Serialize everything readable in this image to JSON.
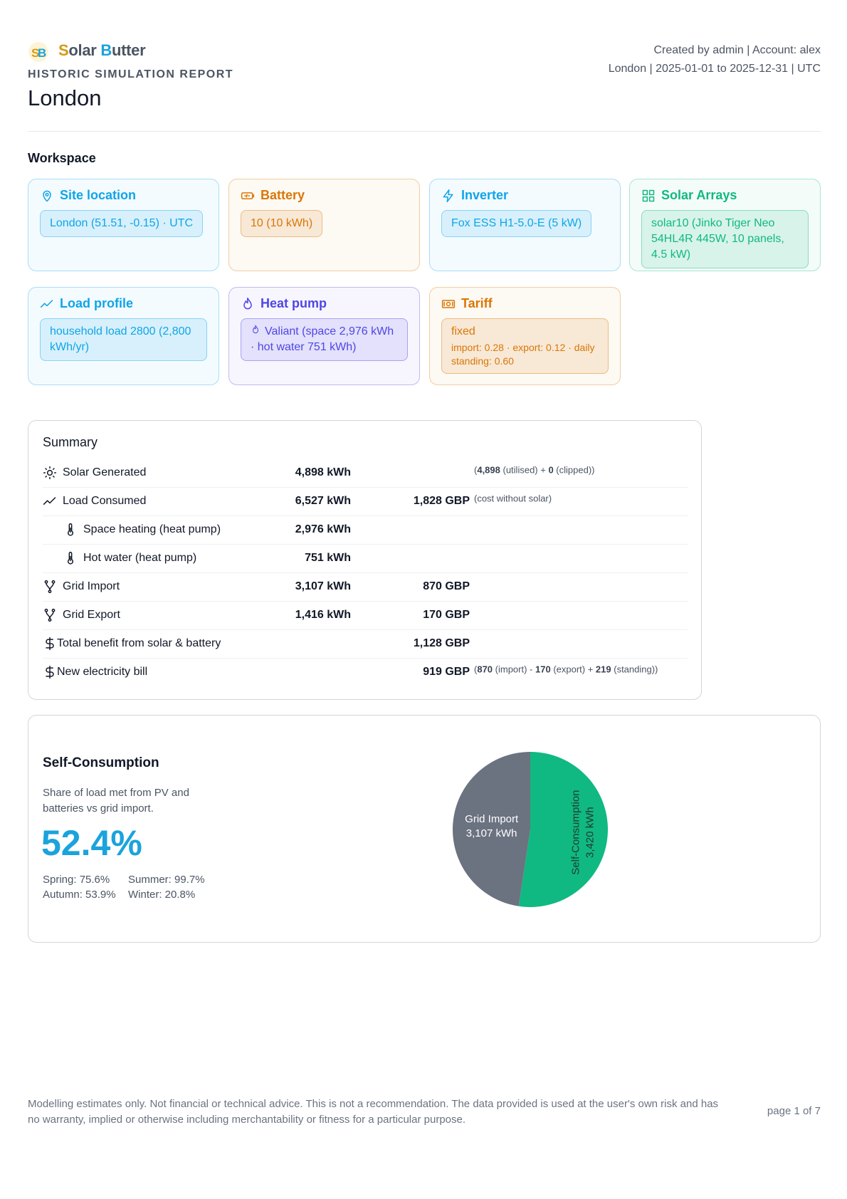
{
  "header": {
    "brand": {
      "first": [
        "S",
        "olar"
      ],
      "second": [
        "B",
        "utter"
      ]
    },
    "subtitle": "HISTORIC SIMULATION REPORT",
    "title": "London",
    "meta": [
      "Created by admin | Account: alex",
      "London | 2025-01-01 to 2025-12-31 | UTC"
    ]
  },
  "workspace": {
    "heading": "Workspace",
    "cards": [
      {
        "title": "Site location",
        "color": "#0ea5e9",
        "items": [
          {
            "text": "London (51.51, -0.15) · UTC"
          }
        ]
      },
      {
        "title": "Battery",
        "color": "#d97706",
        "items": [
          {
            "text": "10 (10 kWh)"
          }
        ]
      },
      {
        "title": "Inverter",
        "color": "#0ea5e9",
        "items": [
          {
            "text": "Fox ESS H1-5.0-E (5 kW)"
          }
        ]
      },
      {
        "title": "Solar Arrays",
        "color": "#10b981",
        "items": [
          {
            "text": "solar10 (Jinko Tiger Neo 54HL4R 445W, 10 panels, 4.5 kW)"
          }
        ]
      },
      {
        "title": "Load profile",
        "color": "#0ea5e9",
        "items": [
          {
            "text": "household load 2800 (2,800 kWh/yr)"
          }
        ]
      },
      {
        "title": "Heat pump",
        "color": "#4f46e5",
        "items": [
          {
            "text": "Valiant (space 2,976 kWh · hot water 751 kWh)"
          }
        ]
      },
      {
        "title": "Tariff",
        "color": "#d97706",
        "items": [
          {
            "text": "fixed",
            "detail": "import: 0.28 · export: 0.12 · daily standing: 0.60"
          }
        ]
      }
    ]
  },
  "summary": {
    "title": "Summary",
    "rows": [
      {
        "label": "Solar Generated",
        "kwh": "4,898 kWh",
        "note": [
          "(",
          "4,898",
          " (utilised) + ",
          "0",
          " (clipped))"
        ]
      },
      {
        "label": "Load Consumed",
        "kwh": "6,527 kWh",
        "gbp": "1,828 GBP",
        "note": [
          "(cost without solar)"
        ]
      },
      {
        "label": "Space heating (heat pump)",
        "kwh": "2,976 kWh"
      },
      {
        "label": "Hot water (heat pump)",
        "kwh": "751 kWh"
      },
      {
        "label": "Grid Import",
        "kwh": "3,107 kWh",
        "gbp": "870 GBP"
      },
      {
        "label": "Grid Export",
        "kwh": "1,416 kWh",
        "gbp": "170 GBP"
      },
      {
        "label": "Total benefit from solar & battery",
        "gbp": "1,128 GBP"
      },
      {
        "label": "New electricity bill",
        "gbp": "919 GBP",
        "note": [
          "(",
          "870",
          " (import) - ",
          "170",
          " (export) + ",
          "219",
          " (standing))"
        ]
      }
    ]
  },
  "self_consumption": {
    "title": "Self-Consumption",
    "description": "Share of load met from PV and batteries vs grid import.",
    "value": "52.4%",
    "seasons": [
      "Spring: 75.6%",
      "Summer: 99.7%",
      "Autumn: 53.9%",
      "Winter: 20.8%"
    ],
    "chart_data": {
      "type": "pie",
      "slices": [
        {
          "name": "Self-Consumption",
          "value": 3420,
          "value_label": "3,420 kWh",
          "color": "#10b981"
        },
        {
          "name": "Grid Import",
          "value": 3107,
          "value_label": "3,107 kWh",
          "color": "#6b7280"
        }
      ]
    }
  },
  "footer": {
    "disclaimer": "Modelling estimates only. Not financial or technical advice. This is not a recommendation. The data provided is used at the user's own risk and has no warranty, implied or otherwise including merchantability or fitness for a particular purpose.",
    "page": "page 1 of 7"
  }
}
